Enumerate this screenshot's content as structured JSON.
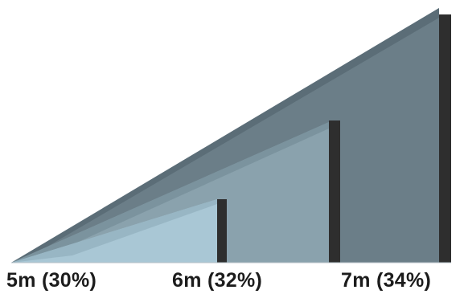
{
  "diagram": {
    "labels": [
      "5m (30%)",
      "6m (32%)",
      "7m (34%)"
    ],
    "colors": {
      "large_front": "#6b7e88",
      "large_top": "#5b6d77",
      "medium": "#8aa2ad",
      "medium_top": "#7b939e",
      "small": "#a9c7d5",
      "small_top": "#98b6c4",
      "post": "#2e2e2e"
    }
  }
}
